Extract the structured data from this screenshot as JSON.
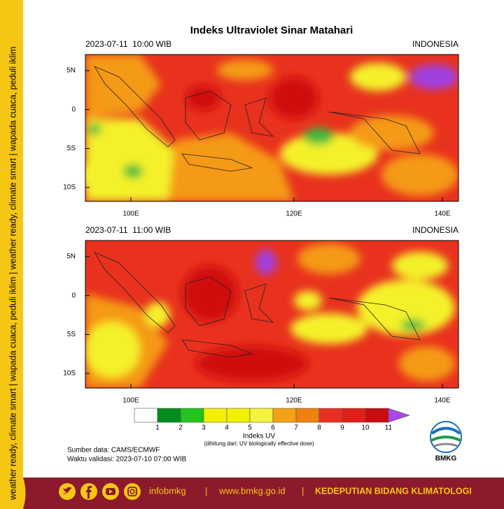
{
  "sidebar": "weather ready, climate smart | wapada cuaca, peduli iklim | weather ready, climate smart | wapada cuaca, peduli iklim",
  "title": "Indeks Ultraviolet Sinar Matahari",
  "panels": [
    {
      "time": "2023-07-11  10:00 WIB",
      "region": "INDONESIA",
      "lat_labels": [
        "5N",
        "0",
        "5S",
        "10S"
      ],
      "lon_labels": [
        "100E",
        "120E",
        "140E"
      ]
    },
    {
      "time": "2023-07-11  11:00 WIB",
      "region": "INDONESIA",
      "lat_labels": [
        "5N",
        "0",
        "5S",
        "10S"
      ],
      "lon_labels": [
        "100E",
        "120E",
        "140E"
      ]
    }
  ],
  "legend": {
    "ticks": [
      1,
      2,
      3,
      4,
      5,
      6,
      7,
      8,
      9,
      10,
      11
    ],
    "title": "Indeks UV",
    "note": "(dihitung dari: UV biologically effective dose)"
  },
  "source": "Sumber data: CAMS/ECMWF",
  "validation": "Waktu validasi: 2023-07-10 07:00 WIB",
  "logo": "BMKG",
  "footer": {
    "handle": "infobmkg",
    "separator": "|",
    "website": "www.bmkg.go.id",
    "department": "KEDEPUTIAN BIDANG KLIMATOLOGI"
  }
}
